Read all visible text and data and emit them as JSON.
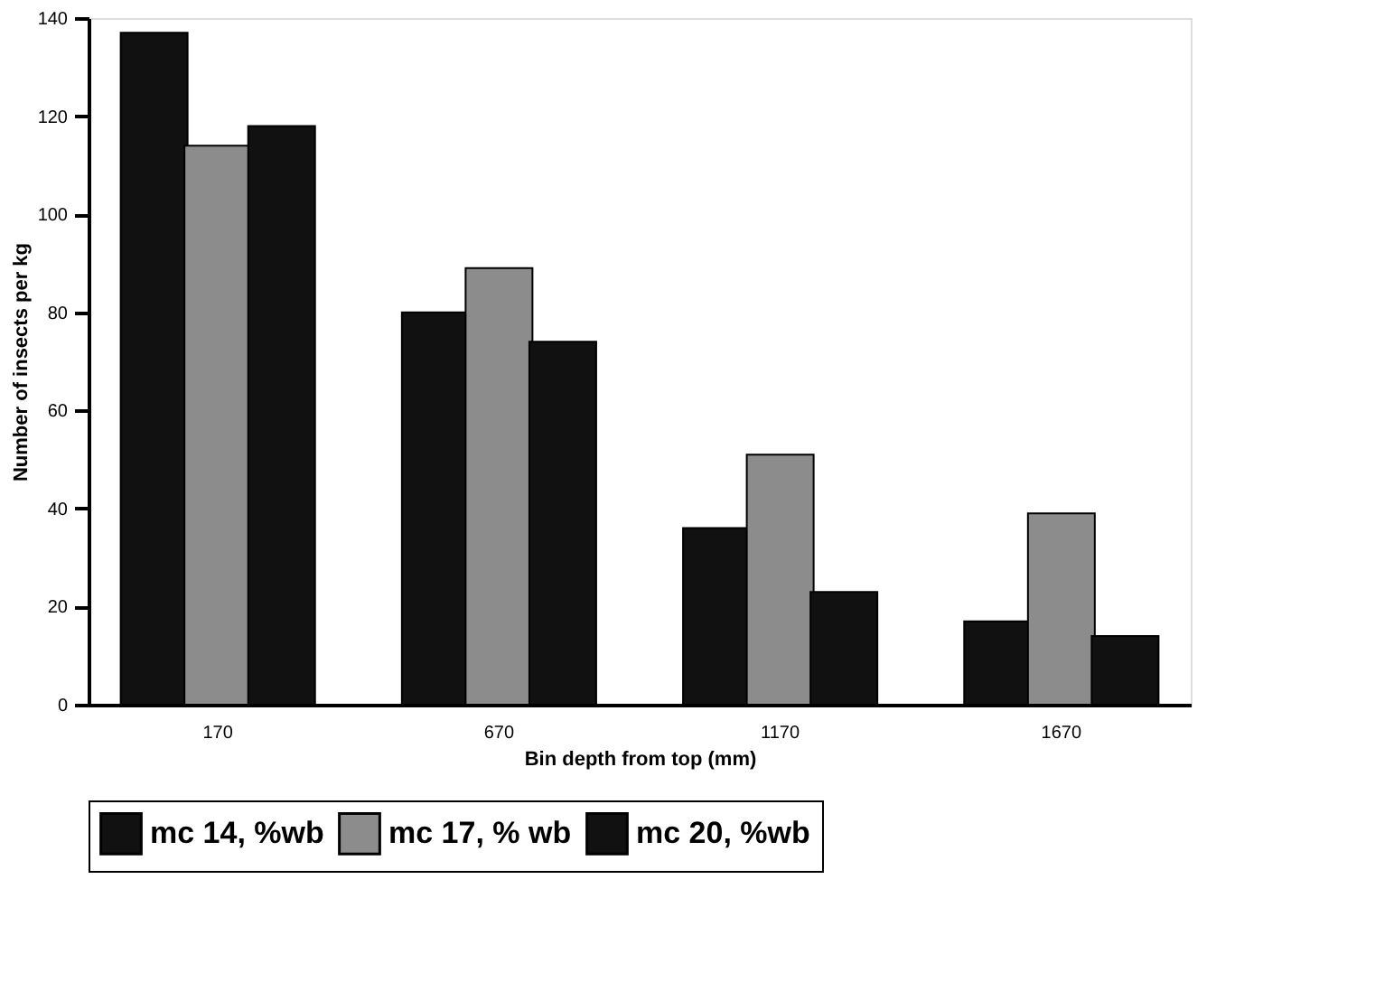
{
  "chart_data": {
    "type": "bar",
    "xlabel": "Bin depth from top (mm)",
    "ylabel": "Number of insects per kg",
    "categories": [
      "170",
      "670",
      "1170",
      "1670"
    ],
    "series": [
      {
        "name": "mc 14, %wb",
        "color": "#111111",
        "values": [
          137,
          80,
          36,
          17
        ]
      },
      {
        "name": "mc 17, % wb",
        "color": "#8c8c8c",
        "values": [
          114,
          89,
          51,
          39
        ]
      },
      {
        "name": "mc 20, %wb",
        "color": "#111111",
        "values": [
          118,
          74,
          23,
          14
        ]
      }
    ],
    "ylim": [
      0,
      140
    ],
    "yticks": [
      0,
      20,
      40,
      60,
      80,
      100,
      120,
      140
    ],
    "grid": false,
    "legend": "bottom"
  }
}
